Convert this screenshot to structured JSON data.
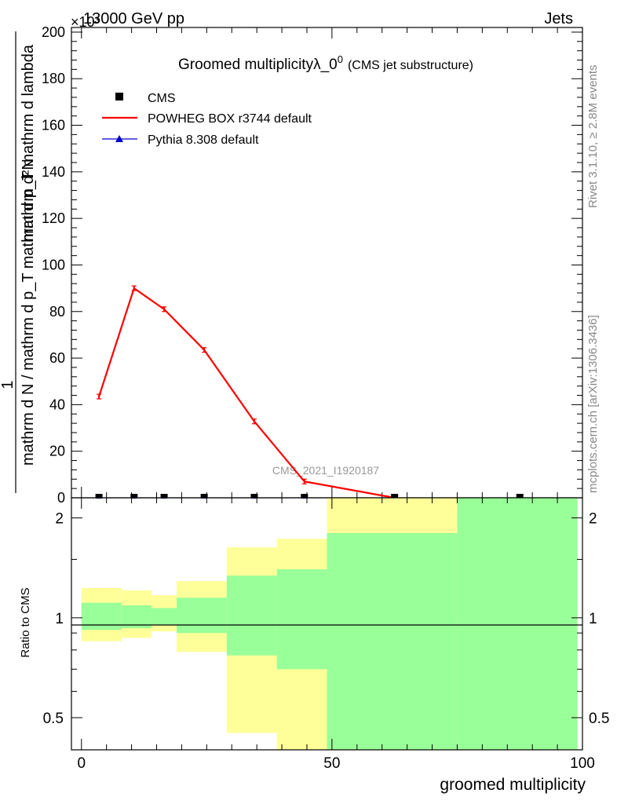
{
  "header": {
    "left": "13000 GeV pp",
    "right": "Jets",
    "exponent": "×10³"
  },
  "side_labels": {
    "rivet": "Rivet 3.1.10, ≥ 2.8M events",
    "mcplots": "mcplots.cern.ch [arXiv:1306.3436]"
  },
  "colors": {
    "powheg": "#ff0000",
    "pythia": "#0000cc",
    "cms": "#000000",
    "band_outer": "#ffff99",
    "band_inner": "#99ff99"
  },
  "chart_data": [
    {
      "type": "line",
      "title": "Groomed multiplicity λ_0⁰",
      "title_main": "Groomed multiplicityλ_0",
      "title_sup": "0",
      "title_sub": "(CMS jet substructure)",
      "watermark": "CMS_2021_I1920187",
      "ylabel_numerator": "mathrm d²N",
      "ylabel_denominator": "mathrm d N / mathrm d p_T mathrm d p_T mathrm d lambda",
      "ylabel_one": "1",
      "ylim": [
        0,
        202
      ],
      "xlim": [
        -2,
        100
      ],
      "yticks": [
        "0",
        "20",
        "40",
        "60",
        "80",
        "100",
        "120",
        "140",
        "160",
        "180",
        "200"
      ],
      "legend": [
        "CMS",
        "POWHEG BOX r3744 default",
        "Pythia 8.308 default"
      ],
      "legend_position": "top-left",
      "series": [
        {
          "name": "POWHEG BOX r3744 default",
          "x": [
            3.5,
            10.5,
            16.5,
            24.5,
            34.5,
            44.5,
            62.5
          ],
          "y": [
            43.5,
            90.0,
            81.0,
            63.5,
            32.8,
            7.0,
            0.0
          ]
        },
        {
          "name": "CMS",
          "x": [
            3.5,
            10.5,
            16.5,
            24.5,
            34.5,
            44.5,
            62.5,
            87.5
          ],
          "y": [
            0,
            0,
            0,
            0,
            0,
            0,
            0,
            0
          ]
        },
        {
          "name": "Pythia 8.308 default",
          "x": [
            3.5,
            10.5,
            16.5,
            24.5,
            34.5,
            44.5,
            62.5,
            87.5
          ],
          "y": [
            0,
            0,
            0,
            0,
            0,
            0,
            0,
            0
          ]
        }
      ]
    },
    {
      "type": "area",
      "ylabel": "Ratio to CMS",
      "xlabel": "groomed multiplicity",
      "ylim": [
        0.4,
        2.3
      ],
      "log_y": true,
      "yticks": [
        "0.5",
        "1",
        "2"
      ],
      "xticks": [
        "0",
        "50",
        "100"
      ],
      "bins": [
        {
          "x0": 0,
          "x1": 8,
          "outer": [
            0.85,
            1.23
          ],
          "inner": [
            0.92,
            1.11
          ]
        },
        {
          "x0": 8,
          "x1": 14,
          "outer": [
            0.87,
            1.21
          ],
          "inner": [
            0.93,
            1.09
          ]
        },
        {
          "x0": 14,
          "x1": 19,
          "outer": [
            0.91,
            1.17
          ],
          "inner": [
            0.95,
            1.07
          ]
        },
        {
          "x0": 19,
          "x1": 29,
          "outer": [
            0.79,
            1.29
          ],
          "inner": [
            0.9,
            1.15
          ]
        },
        {
          "x0": 29,
          "x1": 39,
          "outer": [
            0.45,
            1.63
          ],
          "inner": [
            0.77,
            1.34
          ]
        },
        {
          "x0": 39,
          "x1": 49,
          "outer": [
            0.4,
            1.73
          ],
          "inner": [
            0.7,
            1.4
          ]
        },
        {
          "x0": 49,
          "x1": 75,
          "outer": [
            0.4,
            2.3
          ],
          "inner": [
            0.4,
            1.8
          ]
        },
        {
          "x0": 75,
          "x1": 99,
          "outer": [
            0.4,
            2.3
          ],
          "inner": [
            0.4,
            2.3
          ]
        }
      ]
    }
  ]
}
